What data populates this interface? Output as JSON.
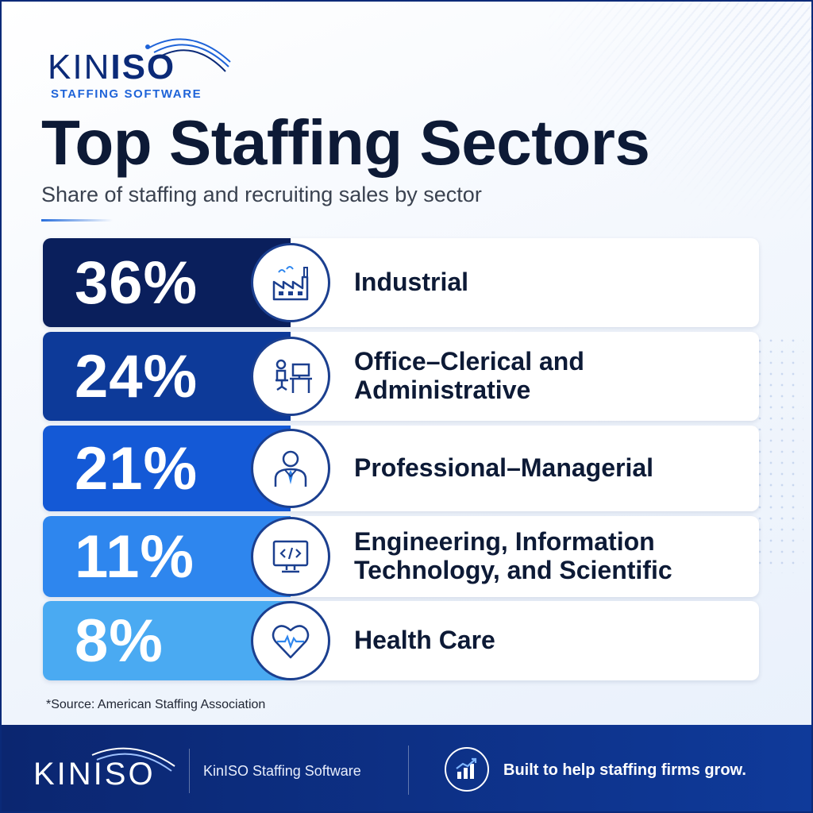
{
  "logo": {
    "word_part1": "KIN",
    "word_part2": "ISO",
    "subline": "STAFFING SOFTWARE"
  },
  "header": {
    "title": "Top Staffing Sectors",
    "subtitle": "Share of staffing and recruiting sales by sector"
  },
  "chart_data": {
    "type": "bar",
    "title": "Top Staffing Sectors",
    "subtitle": "Share of staffing and recruiting sales by sector",
    "unit": "%",
    "categories": [
      "Industrial",
      "Office–Clerical and Administrative",
      "Professional–Managerial",
      "Engineering, Information Technology, and Scientific",
      "Health Care"
    ],
    "values": [
      36,
      24,
      21,
      11,
      8
    ],
    "value_labels": [
      "36%",
      "24%",
      "21%",
      "11%",
      "8%"
    ],
    "colors": [
      "#0a1f5c",
      "#0d3a99",
      "#1459d6",
      "#2e86ee",
      "#4aaaf2"
    ],
    "icons": [
      "factory-icon",
      "office-desk-icon",
      "professional-person-icon",
      "computer-code-icon",
      "heart-pulse-icon"
    ]
  },
  "source": "*Source: American Staffing Association",
  "footer": {
    "logo_word": "KINISO",
    "brand": "KinISO Staffing Software",
    "tagline": "Built to help staffing firms grow.",
    "icon": "growth-chart-icon"
  },
  "colors": {
    "navy": "#0b2a78",
    "accent": "#1e63d8",
    "text": "#0d1a36"
  }
}
